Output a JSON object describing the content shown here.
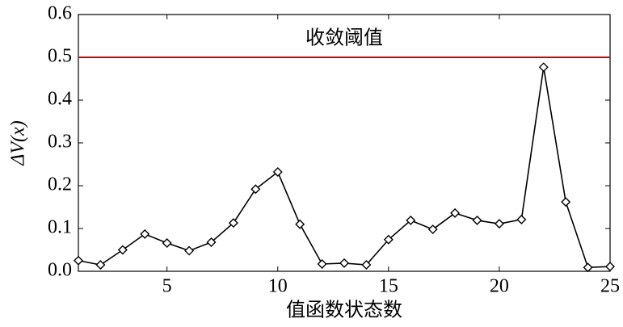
{
  "chart_data": {
    "type": "line",
    "x_label": "值函数状态数",
    "y_label": "ΔV(x)",
    "x": [
      1,
      2,
      3,
      4,
      5,
      6,
      7,
      8,
      9,
      10,
      11,
      12,
      13,
      14,
      15,
      16,
      17,
      18,
      19,
      20,
      21,
      22,
      23,
      24,
      25
    ],
    "series": [
      {
        "color": "#000000",
        "marker": "diamond",
        "values": [
          0.025,
          0.015,
          0.05,
          0.087,
          0.066,
          0.048,
          0.068,
          0.113,
          0.192,
          0.232,
          0.11,
          0.017,
          0.019,
          0.015,
          0.074,
          0.119,
          0.098,
          0.136,
          0.119,
          0.111,
          0.121,
          0.477,
          0.162,
          0.009,
          0.011
        ]
      }
    ],
    "threshold": {
      "value": 0.5,
      "label": "收敛阈值",
      "color": "#e00000"
    },
    "xlim": [
      1,
      25
    ],
    "xticks": [
      5,
      10,
      15,
      20,
      25
    ],
    "ylim": [
      0,
      0.6
    ],
    "yticks": [
      {
        "value": 0,
        "label": "0.0"
      },
      0.1,
      0.2,
      0.3,
      0.4,
      0.5,
      0.6
    ]
  }
}
